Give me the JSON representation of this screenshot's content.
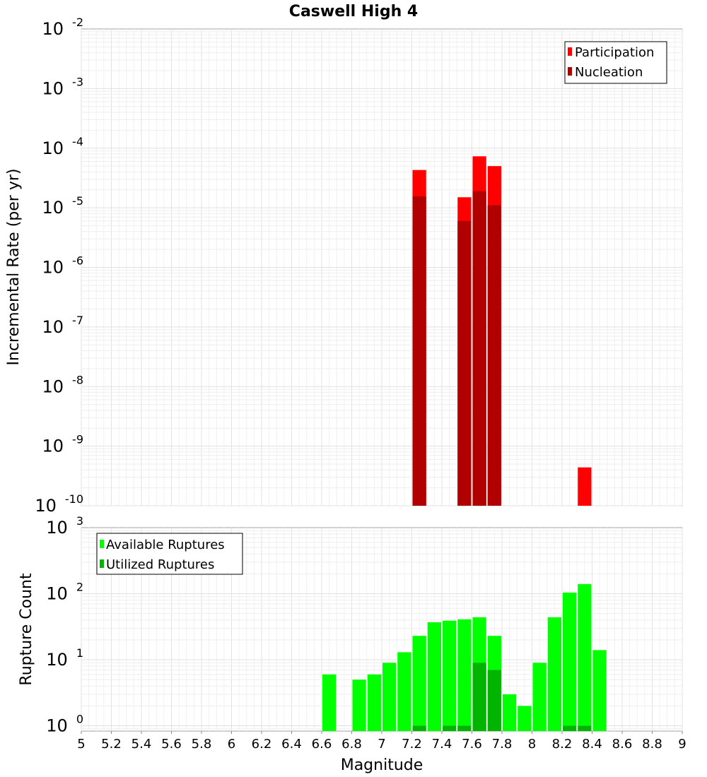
{
  "chart_data": {
    "title": "Caswell High 4",
    "xlabel": "Magnitude",
    "x_ticks": [
      "5",
      "5.2",
      "5.4",
      "5.6",
      "5.8",
      "6",
      "6.2",
      "6.4",
      "6.6",
      "6.8",
      "7",
      "7.2",
      "7.4",
      "7.6",
      "7.8",
      "8",
      "8.2",
      "8.4",
      "8.6",
      "8.8",
      "9"
    ],
    "xlim": [
      5,
      9
    ],
    "bin_width": 0.1,
    "panels": [
      {
        "id": "rate",
        "type": "bar",
        "ylabel": "Incremental Rate (per yr)",
        "yscale": "log",
        "ylim_exp": [
          -10,
          -2
        ],
        "y_ticks": [
          {
            "base": "10",
            "exp": "-2"
          },
          {
            "base": "10",
            "exp": "-3"
          },
          {
            "base": "10",
            "exp": "-4"
          },
          {
            "base": "10",
            "exp": "-5"
          },
          {
            "base": "10",
            "exp": "-6"
          },
          {
            "base": "10",
            "exp": "-7"
          },
          {
            "base": "10",
            "exp": "-8"
          },
          {
            "base": "10",
            "exp": "-9"
          },
          {
            "base": "10",
            "exp": "-10"
          }
        ],
        "legend_position": "top-right",
        "series": [
          {
            "name": "Participation",
            "color": "#ff0000",
            "points": [
              {
                "x": 7.25,
                "y": 4.3e-05
              },
              {
                "x": 7.55,
                "y": 1.5e-05
              },
              {
                "x": 7.65,
                "y": 7.3e-05
              },
              {
                "x": 7.75,
                "y": 5e-05
              },
              {
                "x": 8.35,
                "y": 4.4e-10
              }
            ]
          },
          {
            "name": "Nucleation",
            "color": "#b00000",
            "points": [
              {
                "x": 7.25,
                "y": 1.55e-05
              },
              {
                "x": 7.55,
                "y": 6e-06
              },
              {
                "x": 7.65,
                "y": 1.9e-05
              },
              {
                "x": 7.75,
                "y": 1.1e-05
              }
            ]
          }
        ]
      },
      {
        "id": "count",
        "type": "bar",
        "ylabel": "Rupture Count",
        "yscale": "log",
        "ylim_exp": [
          -0.08,
          3
        ],
        "y_ticks": [
          {
            "base": "10",
            "exp": "3"
          },
          {
            "base": "10",
            "exp": "2"
          },
          {
            "base": "10",
            "exp": "1"
          },
          {
            "base": "10",
            "exp": "0"
          }
        ],
        "legend_position": "top-left",
        "series": [
          {
            "name": "Available Ruptures",
            "color": "#00ff00",
            "points": [
              {
                "x": 6.65,
                "y": 6
              },
              {
                "x": 6.85,
                "y": 5
              },
              {
                "x": 6.95,
                "y": 6
              },
              {
                "x": 7.05,
                "y": 9
              },
              {
                "x": 7.15,
                "y": 13
              },
              {
                "x": 7.25,
                "y": 23
              },
              {
                "x": 7.35,
                "y": 37
              },
              {
                "x": 7.45,
                "y": 39
              },
              {
                "x": 7.55,
                "y": 41
              },
              {
                "x": 7.65,
                "y": 44
              },
              {
                "x": 7.75,
                "y": 23
              },
              {
                "x": 7.85,
                "y": 3
              },
              {
                "x": 7.95,
                "y": 2
              },
              {
                "x": 8.05,
                "y": 9
              },
              {
                "x": 8.15,
                "y": 44
              },
              {
                "x": 8.25,
                "y": 104
              },
              {
                "x": 8.35,
                "y": 140
              },
              {
                "x": 8.45,
                "y": 14
              }
            ]
          },
          {
            "name": "Utilized Ruptures",
            "color": "#00b400",
            "points": [
              {
                "x": 7.25,
                "y": 1
              },
              {
                "x": 7.45,
                "y": 1
              },
              {
                "x": 7.55,
                "y": 1
              },
              {
                "x": 7.65,
                "y": 9
              },
              {
                "x": 7.75,
                "y": 7
              },
              {
                "x": 8.25,
                "y": 1
              },
              {
                "x": 8.35,
                "y": 1
              }
            ]
          }
        ]
      }
    ]
  }
}
